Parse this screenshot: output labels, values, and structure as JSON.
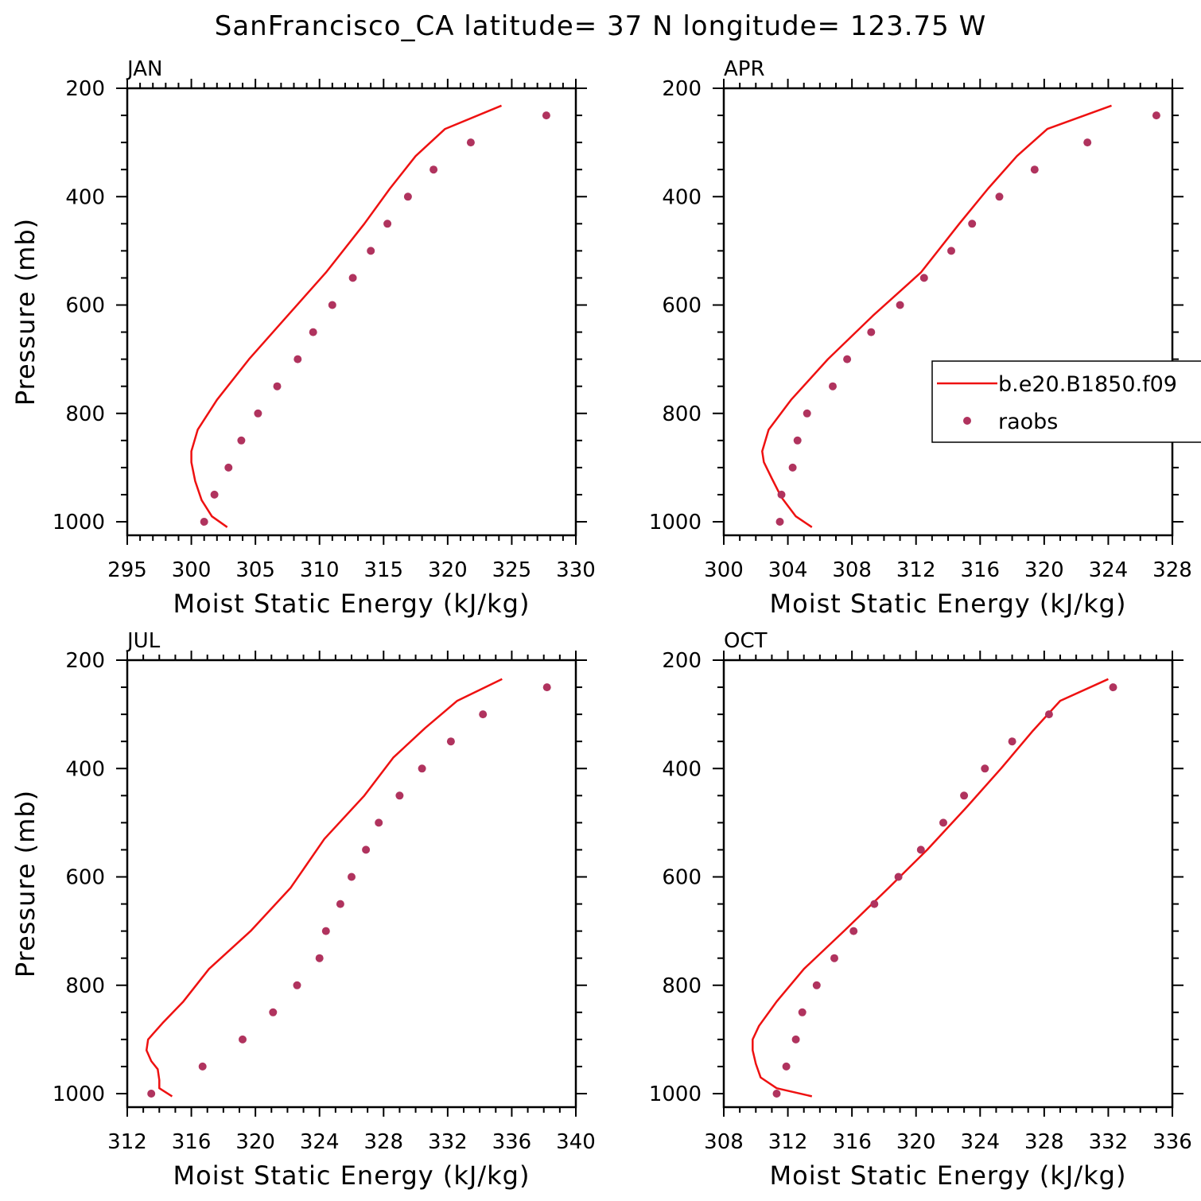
{
  "figure": {
    "title": "SanFrancisco_CA  latitude= 37 N longitude= 123.75 W"
  },
  "colors": {
    "model_line": "#ee1111",
    "raobs_marker": "#b0335e",
    "axes": "#000000"
  },
  "legend": {
    "items": [
      {
        "label": "b.e20.B1850.f09",
        "kind": "line"
      },
      {
        "label": "raobs",
        "kind": "marker"
      }
    ],
    "panel": "APR",
    "placement": "right-middle (clipped at figure edge)"
  },
  "chart_data": [
    {
      "type": "line",
      "panel": "JAN",
      "title": "JAN",
      "xlabel": "Moist Static Energy (kJ/kg)",
      "ylabel": "Pressure (mb)",
      "xlim": [
        295,
        330
      ],
      "ylim": [
        1000,
        200
      ],
      "xticks": [
        295,
        300,
        305,
        310,
        315,
        320,
        325,
        330
      ],
      "yticks": [
        200,
        400,
        600,
        800,
        1000
      ],
      "model": {
        "name": "b.e20.B1850.f09",
        "x": [
          302.8,
          301.6,
          300.8,
          300.3,
          300.0,
          300.0,
          300.5,
          302.0,
          304.5,
          307.5,
          310.5,
          313.5,
          315.5,
          317.5,
          319.8,
          324.2
        ],
        "y": [
          1010,
          990,
          960,
          925,
          890,
          870,
          830,
          775,
          700,
          620,
          540,
          450,
          385,
          325,
          275,
          232
        ]
      },
      "raobs": {
        "name": "raobs",
        "x": [
          301.0,
          301.8,
          302.9,
          303.9,
          305.2,
          306.7,
          308.3,
          309.5,
          311.0,
          312.6,
          314.0,
          315.3,
          316.9,
          318.9,
          321.8,
          327.7
        ],
        "y": [
          1000,
          950,
          900,
          850,
          800,
          750,
          700,
          650,
          600,
          550,
          500,
          450,
          400,
          350,
          300,
          250
        ]
      }
    },
    {
      "type": "line",
      "panel": "APR",
      "title": "APR",
      "xlabel": "Moist Static Energy (kJ/kg)",
      "ylabel": "",
      "xlim": [
        300,
        328
      ],
      "ylim": [
        1000,
        200
      ],
      "xticks": [
        300,
        304,
        308,
        312,
        316,
        320,
        324,
        328
      ],
      "yticks": [
        200,
        400,
        600,
        800,
        1000
      ],
      "model": {
        "name": "b.e20.B1850.f09",
        "x": [
          305.5,
          304.5,
          303.6,
          303.0,
          302.5,
          302.4,
          302.8,
          304.2,
          306.5,
          309.3,
          312.3,
          314.7,
          316.5,
          318.3,
          320.2,
          324.2
        ],
        "y": [
          1010,
          990,
          955,
          920,
          890,
          870,
          830,
          775,
          700,
          620,
          540,
          450,
          385,
          325,
          275,
          232
        ]
      },
      "raobs": {
        "name": "raobs",
        "x": [
          303.5,
          303.6,
          304.3,
          304.6,
          305.2,
          306.8,
          307.7,
          309.2,
          311.0,
          312.5,
          314.2,
          315.5,
          317.2,
          319.4,
          322.7,
          327.0
        ],
        "y": [
          1000,
          950,
          900,
          850,
          800,
          750,
          700,
          650,
          600,
          550,
          500,
          450,
          400,
          350,
          300,
          250
        ]
      }
    },
    {
      "type": "line",
      "panel": "JUL",
      "title": "JUL",
      "xlabel": "Moist Static Energy (kJ/kg)",
      "ylabel": "Pressure (mb)",
      "xlim": [
        312,
        340
      ],
      "ylim": [
        1000,
        200
      ],
      "xticks": [
        312,
        316,
        320,
        324,
        328,
        332,
        336,
        340
      ],
      "yticks": [
        200,
        400,
        600,
        800,
        1000
      ],
      "model": {
        "name": "b.e20.B1850.f09",
        "x": [
          314.8,
          314.0,
          314.0,
          313.9,
          313.5,
          313.2,
          313.3,
          313.6,
          314.2,
          315.5,
          317.1,
          319.7,
          322.2,
          324.3,
          326.8,
          328.6,
          330.6,
          332.6,
          335.4
        ],
        "y": [
          1005,
          990,
          975,
          955,
          940,
          920,
          900,
          890,
          870,
          830,
          770,
          700,
          620,
          530,
          450,
          380,
          325,
          275,
          235
        ]
      },
      "raobs": {
        "name": "raobs",
        "x": [
          313.5,
          316.7,
          319.2,
          321.1,
          322.6,
          324.0,
          324.4,
          325.3,
          326.0,
          326.9,
          327.7,
          329.0,
          330.4,
          332.2,
          334.2,
          338.2
        ],
        "y": [
          1000,
          950,
          900,
          850,
          800,
          750,
          700,
          650,
          600,
          550,
          500,
          450,
          400,
          350,
          300,
          250
        ]
      }
    },
    {
      "type": "line",
      "panel": "OCT",
      "title": "OCT",
      "xlabel": "Moist Static Energy (kJ/kg)",
      "ylabel": "",
      "xlim": [
        308,
        336
      ],
      "ylim": [
        1000,
        200
      ],
      "xticks": [
        308,
        312,
        316,
        320,
        324,
        328,
        332,
        336
      ],
      "yticks": [
        200,
        400,
        600,
        800,
        1000
      ],
      "model": {
        "name": "b.e20.B1850.f09",
        "x": [
          313.5,
          311.3,
          310.3,
          310.0,
          309.8,
          309.8,
          310.2,
          311.3,
          313.0,
          315.5,
          318.3,
          320.7,
          323.2,
          325.3,
          327.3,
          329.0,
          332.0
        ],
        "y": [
          1005,
          990,
          970,
          945,
          920,
          900,
          875,
          830,
          770,
          700,
          620,
          550,
          470,
          400,
          330,
          275,
          235
        ]
      },
      "raobs": {
        "name": "raobs",
        "x": [
          311.3,
          311.9,
          312.5,
          312.9,
          313.8,
          314.9,
          316.1,
          317.4,
          318.9,
          320.3,
          321.7,
          323.0,
          324.3,
          326.0,
          328.3,
          332.3
        ],
        "y": [
          1000,
          950,
          900,
          850,
          800,
          750,
          700,
          650,
          600,
          550,
          500,
          450,
          400,
          350,
          300,
          250
        ]
      }
    }
  ]
}
